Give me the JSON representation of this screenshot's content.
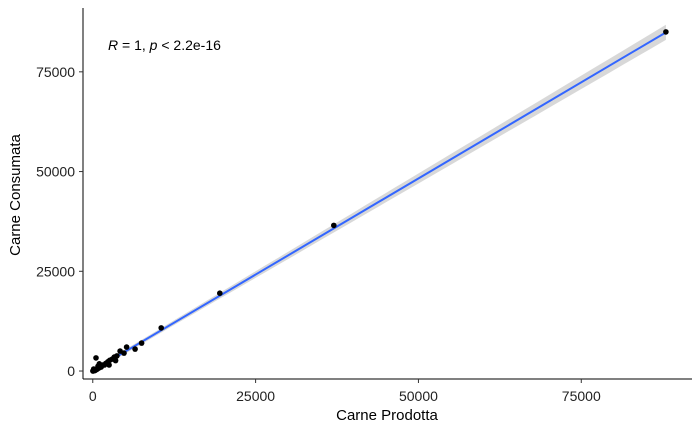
{
  "chart_data": {
    "type": "scatter",
    "title": "",
    "xlabel": "Carne Prodotta",
    "ylabel": "Carne Consumata",
    "xlim": [
      -1500,
      92000
    ],
    "ylim": [
      -2000,
      91000
    ],
    "x_ticks": [
      0,
      25000,
      50000,
      75000
    ],
    "y_ticks": [
      0,
      25000,
      50000,
      75000
    ],
    "x_tick_labels": [
      "0",
      "25000",
      "50000",
      "75000"
    ],
    "y_tick_labels": [
      "0",
      "25000",
      "50000",
      "75000"
    ],
    "grid": false,
    "annotation": {
      "R_symbol": "R",
      "middle": " = 1, ",
      "p_symbol": "p",
      "tail": " < 2.2e-16"
    },
    "regression": {
      "method": "linear",
      "x_range": [
        0,
        88000
      ],
      "y_at_start": 80,
      "y_at_end": 84900,
      "color": "#3366FF",
      "ci_color": "#BEBEBE"
    },
    "point_color": "#000000",
    "points": [
      {
        "x": 88000,
        "y": 85000
      },
      {
        "x": 37000,
        "y": 36500
      },
      {
        "x": 19500,
        "y": 19500
      },
      {
        "x": 10500,
        "y": 10800
      },
      {
        "x": 7500,
        "y": 7000
      },
      {
        "x": 6500,
        "y": 5500
      },
      {
        "x": 5200,
        "y": 6000
      },
      {
        "x": 4800,
        "y": 4500
      },
      {
        "x": 4200,
        "y": 5000
      },
      {
        "x": 3700,
        "y": 3800
      },
      {
        "x": 3300,
        "y": 3500
      },
      {
        "x": 3000,
        "y": 3000
      },
      {
        "x": 2600,
        "y": 2700
      },
      {
        "x": 2300,
        "y": 2300
      },
      {
        "x": 2000,
        "y": 1900
      },
      {
        "x": 1800,
        "y": 1500
      },
      {
        "x": 1500,
        "y": 1500
      },
      {
        "x": 1300,
        "y": 1000
      },
      {
        "x": 1100,
        "y": 900
      },
      {
        "x": 900,
        "y": 700
      },
      {
        "x": 700,
        "y": 500
      },
      {
        "x": 600,
        "y": 400
      },
      {
        "x": 500,
        "y": 3300
      },
      {
        "x": 400,
        "y": 200
      },
      {
        "x": 300,
        "y": 100
      },
      {
        "x": 200,
        "y": 150
      },
      {
        "x": 150,
        "y": 500
      },
      {
        "x": 100,
        "y": 80
      },
      {
        "x": 50,
        "y": 40
      },
      {
        "x": 20,
        "y": 10
      },
      {
        "x": 1000,
        "y": 1800
      },
      {
        "x": 2500,
        "y": 1500
      },
      {
        "x": 3500,
        "y": 2600
      },
      {
        "x": 800,
        "y": 1200
      }
    ]
  }
}
